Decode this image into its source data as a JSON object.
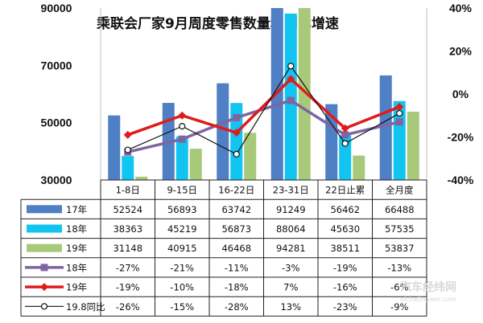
{
  "chart_data": {
    "type": "bar",
    "title": "乘联会厂家9月周度零售数量和同比增速",
    "categories": [
      "1-8日",
      "9-15日",
      "16-22日",
      "23-31日",
      "22日止累",
      "全月度"
    ],
    "ylim": [
      30000,
      90000
    ],
    "y_ticks": [
      "30000",
      "50000",
      "70000",
      "90000"
    ],
    "y2lim": [
      -40,
      40
    ],
    "y2_ticks": [
      "-40%",
      "-20%",
      "0%",
      "20%",
      "40%"
    ],
    "bar_series": [
      {
        "name": "17年",
        "color": "#4f7fc4",
        "values": [
          52524,
          56893,
          63742,
          91249,
          56462,
          66488
        ],
        "labels": [
          "52524",
          "56893",
          "63742",
          "91249",
          "56462",
          "66488"
        ]
      },
      {
        "name": "18年",
        "color": "#12c4f0",
        "values": [
          38363,
          45219,
          56873,
          88064,
          45630,
          57535
        ],
        "labels": [
          "38363",
          "45219",
          "56873",
          "88064",
          "45630",
          "57535"
        ]
      },
      {
        "name": "19年",
        "color": "#a8c97a",
        "values": [
          31148,
          40915,
          46468,
          94281,
          38511,
          53837
        ],
        "labels": [
          "31148",
          "40915",
          "46468",
          "94281",
          "38511",
          "53837"
        ]
      }
    ],
    "line_series": [
      {
        "name": "18年",
        "color": "#8064a2",
        "marker": "square",
        "values": [
          -27,
          -21,
          -11,
          -3,
          -19,
          -13
        ],
        "labels": [
          "-27%",
          "-21%",
          "-11%",
          "-3%",
          "-19%",
          "-13%"
        ]
      },
      {
        "name": "19年",
        "color": "#e01b1b",
        "marker": "diamond",
        "values": [
          -19,
          -10,
          -18,
          7,
          -16,
          -6
        ],
        "labels": [
          "-19%",
          "-10%",
          "-18%",
          "7%",
          "-16%",
          "-6%"
        ]
      },
      {
        "name": "19.8同比",
        "color": "#111111",
        "marker": "circle",
        "values": [
          -26,
          -15,
          -28,
          13,
          -23,
          -9
        ],
        "labels": [
          "-26%",
          "-15%",
          "-28%",
          "13%",
          "-23%",
          "-9%"
        ]
      }
    ],
    "legend_placement": "table-left",
    "grid": false
  },
  "watermark": {
    "logo_text": "汽车经纬网",
    "url_text": "qichejingwei.com"
  }
}
